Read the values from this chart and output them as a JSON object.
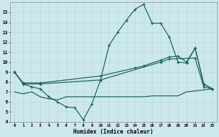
{
  "xlabel": "Humidex (Indice chaleur)",
  "bg_color": "#cce8ec",
  "grid_color": "#b8d8dc",
  "line_color": "#1a6060",
  "ylim": [
    4,
    16
  ],
  "xlim": [
    -0.5,
    23.5
  ],
  "yticks": [
    4,
    5,
    6,
    7,
    8,
    9,
    10,
    11,
    12,
    13,
    14,
    15
  ],
  "xticks": [
    0,
    1,
    2,
    3,
    4,
    5,
    6,
    7,
    8,
    9,
    10,
    11,
    12,
    13,
    14,
    15,
    16,
    17,
    18,
    19,
    20,
    21,
    22,
    23
  ],
  "line1_x": [
    0,
    1,
    2,
    3,
    4,
    5,
    6,
    7,
    8,
    9,
    10,
    11,
    12,
    13,
    14,
    15,
    16,
    17,
    18,
    19,
    20,
    21,
    22,
    23
  ],
  "line1_y": [
    9.0,
    7.8,
    7.5,
    7.3,
    6.5,
    6.0,
    5.5,
    5.4,
    4.2,
    5.8,
    8.2,
    11.7,
    13.0,
    14.2,
    15.3,
    15.8,
    13.9,
    13.9,
    12.5,
    10.0,
    9.9,
    11.4,
    7.8,
    7.3
  ],
  "line2_x": [
    0,
    1,
    3,
    10,
    14,
    15,
    17,
    18,
    19,
    20,
    21,
    22,
    23
  ],
  "line2_y": [
    9.0,
    7.9,
    7.9,
    8.6,
    9.4,
    9.6,
    10.2,
    10.5,
    10.6,
    10.0,
    11.4,
    7.8,
    7.3
  ],
  "line3_x": [
    0,
    1,
    3,
    10,
    17,
    18,
    21,
    22,
    23
  ],
  "line3_y": [
    9.0,
    7.8,
    7.8,
    8.2,
    10.0,
    10.3,
    10.4,
    7.5,
    7.3
  ],
  "line4_x": [
    0,
    1,
    2,
    3,
    4,
    5,
    6,
    7,
    8,
    9,
    10,
    11,
    12,
    13,
    14,
    15,
    16,
    17,
    18,
    19,
    20,
    21,
    22,
    23
  ],
  "line4_y": [
    7.0,
    6.8,
    7.0,
    6.5,
    6.3,
    6.2,
    6.5,
    6.5,
    6.5,
    6.5,
    6.5,
    6.5,
    6.5,
    6.5,
    6.5,
    6.5,
    6.6,
    6.6,
    6.6,
    6.6,
    7.0,
    7.1,
    7.2,
    7.3
  ]
}
